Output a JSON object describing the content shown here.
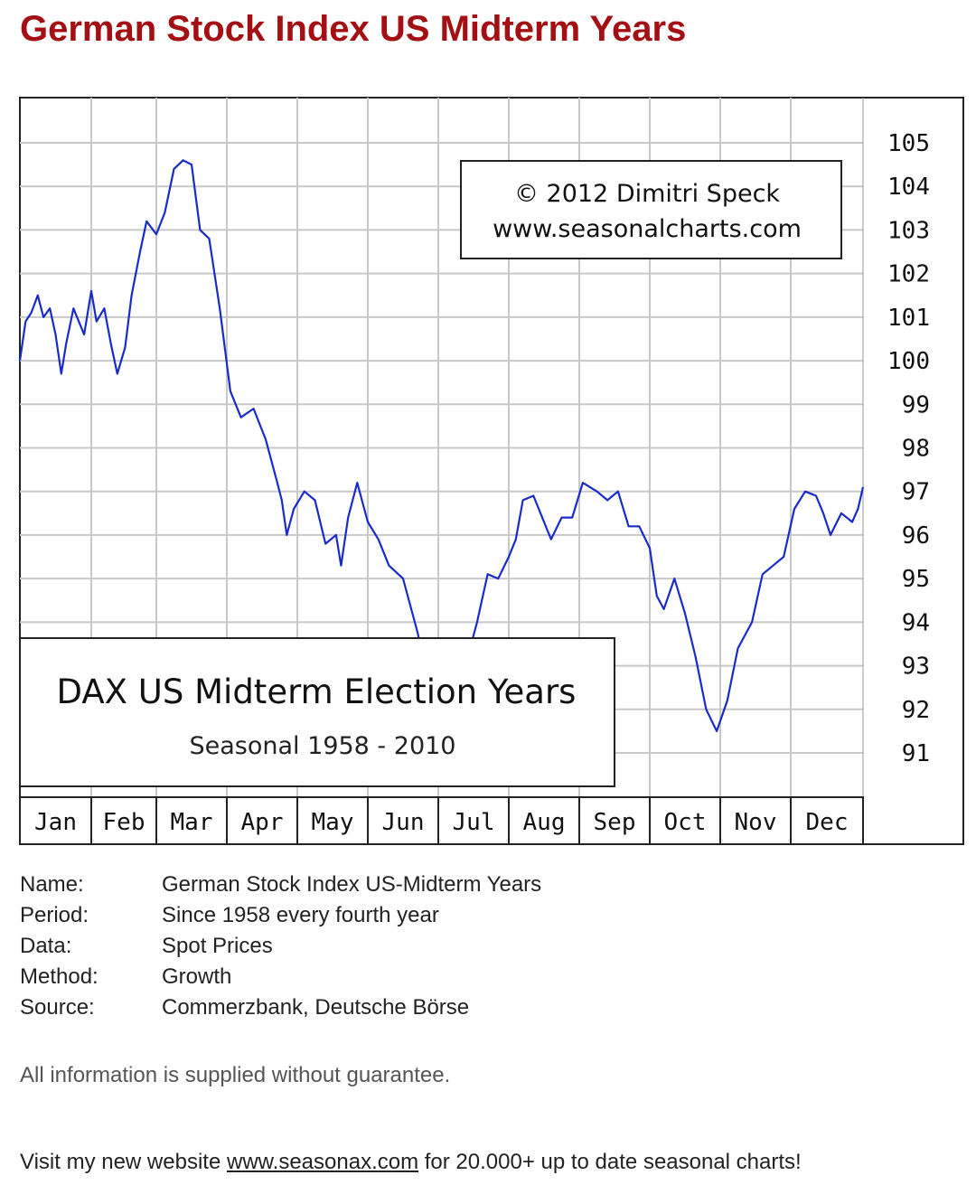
{
  "page": {
    "title": "German Stock Index US Midterm Years",
    "info": [
      {
        "label": "Name:",
        "value": "German Stock Index US-Midterm Years"
      },
      {
        "label": "Period:",
        "value": "Since 1958 every fourth year"
      },
      {
        "label": "Data:",
        "value": "Spot Prices"
      },
      {
        "label": "Method:",
        "value": "Growth"
      },
      {
        "label": "Source:",
        "value": "Commerzbank, Deutsche Börse"
      }
    ],
    "disclaimer": "All information is supplied without guarantee.",
    "promo": {
      "before": "Visit my new website ",
      "link": "www.seasonax.com",
      "after": " for 20.000+ up to date seasonal charts!"
    }
  },
  "chart_data": {
    "type": "line",
    "title": "DAX US Midterm Election Years",
    "subtitle": "Seasonal 1958 - 2010",
    "copyright": [
      "© 2012  Dimitri Speck",
      "www.seasonalcharts.com"
    ],
    "categories": [
      "Jan",
      "Feb",
      "Mar",
      "Apr",
      "May",
      "Jun",
      "Jul",
      "Aug",
      "Sep",
      "Oct",
      "Nov",
      "Dec"
    ],
    "y_ticks": [
      "105",
      "104",
      "103",
      "102",
      "101",
      "100",
      "99",
      "98",
      "97",
      "96",
      "95",
      "94",
      "93",
      "92",
      "91"
    ],
    "ylim": [
      90.35,
      106.05
    ],
    "grid": true,
    "line_color": "#1a2bc8",
    "x": [
      0,
      0.08,
      0.16,
      0.25,
      0.33,
      0.42,
      0.5,
      0.58,
      0.65,
      0.75,
      0.9,
      1.0,
      1.08,
      1.2,
      1.3,
      1.4,
      1.52,
      1.62,
      1.75,
      1.85,
      2.0,
      2.12,
      2.25,
      2.38,
      2.5,
      2.62,
      2.75,
      2.9,
      3.05,
      3.2,
      3.38,
      3.55,
      3.7,
      3.78,
      3.85,
      3.95,
      4.1,
      4.25,
      4.4,
      4.55,
      4.62,
      4.72,
      4.85,
      5.0,
      5.15,
      5.3,
      5.5,
      5.7,
      5.85,
      6.0,
      6.15,
      6.3,
      6.45,
      6.55,
      6.7,
      6.85,
      7.0,
      7.1,
      7.2,
      7.35,
      7.5,
      7.6,
      7.75,
      7.9,
      8.05,
      8.25,
      8.4,
      8.55,
      8.7,
      8.85,
      9.0,
      9.1,
      9.2,
      9.35,
      9.5,
      9.65,
      9.8,
      9.95,
      10.1,
      10.25,
      10.45,
      10.6,
      10.75,
      10.9,
      11.05,
      11.2,
      11.35,
      11.45,
      11.55,
      11.7,
      11.85,
      11.93,
      12.0
    ],
    "y": [
      100.0,
      100.9,
      101.1,
      101.5,
      101.0,
      101.2,
      100.6,
      99.7,
      100.4,
      101.2,
      100.6,
      101.6,
      100.9,
      101.2,
      100.4,
      99.7,
      100.3,
      101.5,
      102.5,
      103.2,
      102.9,
      103.4,
      104.4,
      104.6,
      104.5,
      103.0,
      102.8,
      101.2,
      99.3,
      98.7,
      98.9,
      98.2,
      97.3,
      96.8,
      96.0,
      96.6,
      97.0,
      96.8,
      95.8,
      96.0,
      95.3,
      96.4,
      97.2,
      96.3,
      95.9,
      95.3,
      95.0,
      93.8,
      92.8,
      91.5,
      92.3,
      93.5,
      93.4,
      94.0,
      95.1,
      95.0,
      95.5,
      95.9,
      96.8,
      96.9,
      96.3,
      95.9,
      96.4,
      96.4,
      97.2,
      97.0,
      96.8,
      97.0,
      96.2,
      96.2,
      95.7,
      94.6,
      94.3,
      95.0,
      94.2,
      93.2,
      92.0,
      91.5,
      92.2,
      93.4,
      94.0,
      95.1,
      95.3,
      95.5,
      96.6,
      97.0,
      96.9,
      96.5,
      96.0,
      96.5,
      96.3,
      96.6,
      97.1
    ]
  }
}
